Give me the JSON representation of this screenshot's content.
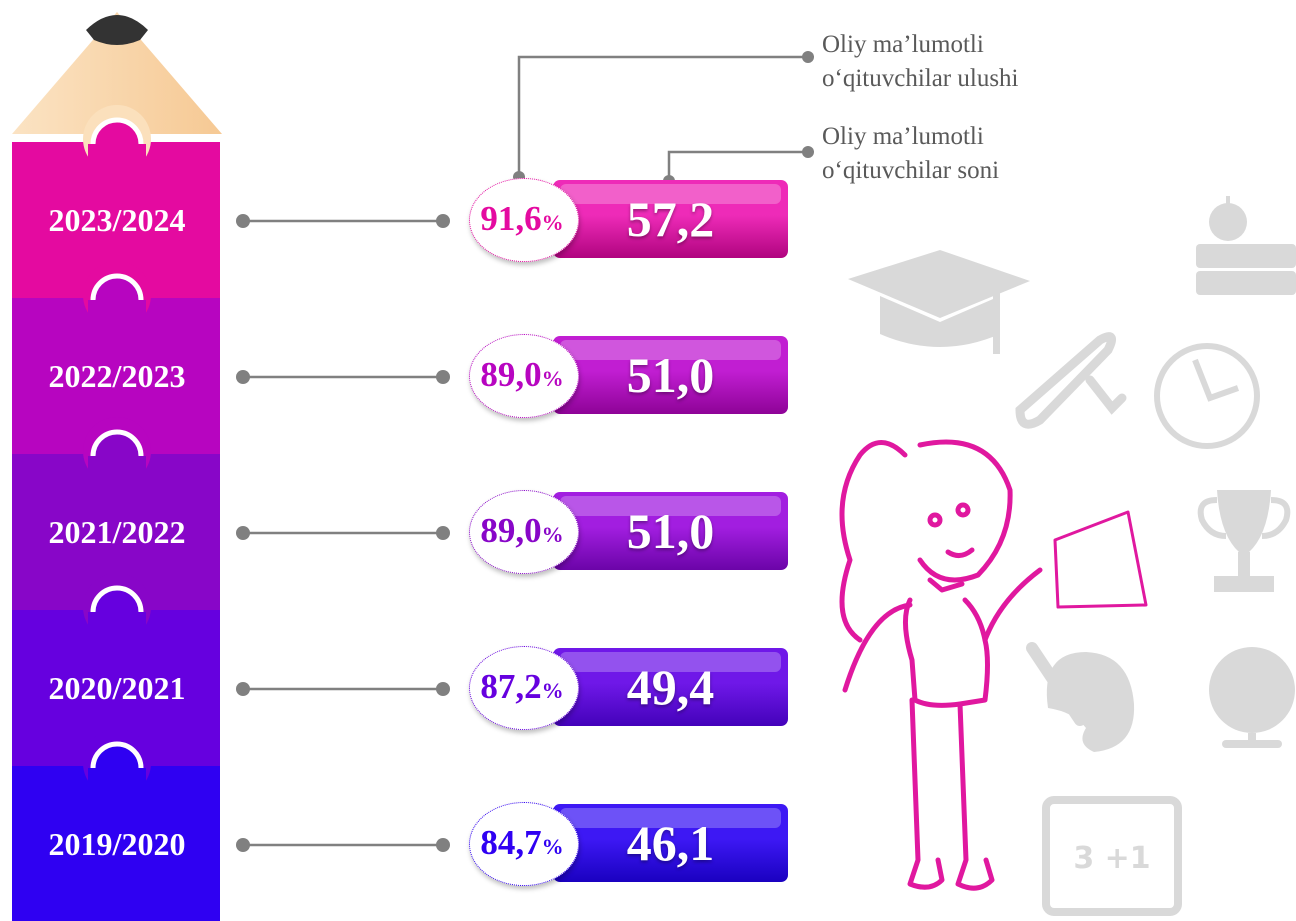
{
  "legend": {
    "share_label_line1": "Oliy ma’lumotli",
    "share_label_line2": "o‘qituvchilar ulushi",
    "count_label_line1": "Oliy ma’lumotli",
    "count_label_line2": "o‘qituvchilar soni"
  },
  "percent_sign": "%",
  "chart_data": {
    "type": "bar",
    "categories": [
      "2023/2024",
      "2022/2023",
      "2021/2022",
      "2020/2021",
      "2019/2020"
    ],
    "series": [
      {
        "name": "Oliy ma’lumotli o‘qituvchilar soni",
        "values": [
          57.2,
          51.0,
          51.0,
          49.4,
          46.1
        ],
        "labels": [
          "57,2",
          "51,0",
          "51,0",
          "49,4",
          "46,1"
        ]
      },
      {
        "name": "Oliy ma’lumotli o‘qituvchilar ulushi",
        "values": [
          91.6,
          89.0,
          89.0,
          87.2,
          84.7
        ],
        "labels": [
          "91,6",
          "89,0",
          "89,0",
          "87,2",
          "84,7"
        ]
      }
    ]
  },
  "colors": {
    "year_bands": [
      "#e40aa0",
      "#b705c0",
      "#8806c8",
      "#6600df",
      "#2f00f2"
    ],
    "bar_top": [
      "#ee2bb8",
      "#c11ed2",
      "#a21ee0",
      "#6f18e8",
      "#3d18f4"
    ],
    "bar_bottom": [
      "#b0047f",
      "#8e0397",
      "#6b04a8",
      "#4402ba",
      "#1a01c0"
    ],
    "pencil_wood": "#f9d6a8",
    "pencil_tip": "#333333",
    "connector": "#808080",
    "teacher": "#e0189f",
    "icons": "#d9d9d9"
  },
  "icons": [
    "pencil-icon",
    "graduation-cap-icon",
    "books-apple-icon",
    "diploma-scroll-icon",
    "clock-icon",
    "trophy-icon",
    "palette-icon",
    "globe-icon",
    "chalkboard-icon",
    "teacher-illustration"
  ],
  "chalkboard_text": "3 +1"
}
